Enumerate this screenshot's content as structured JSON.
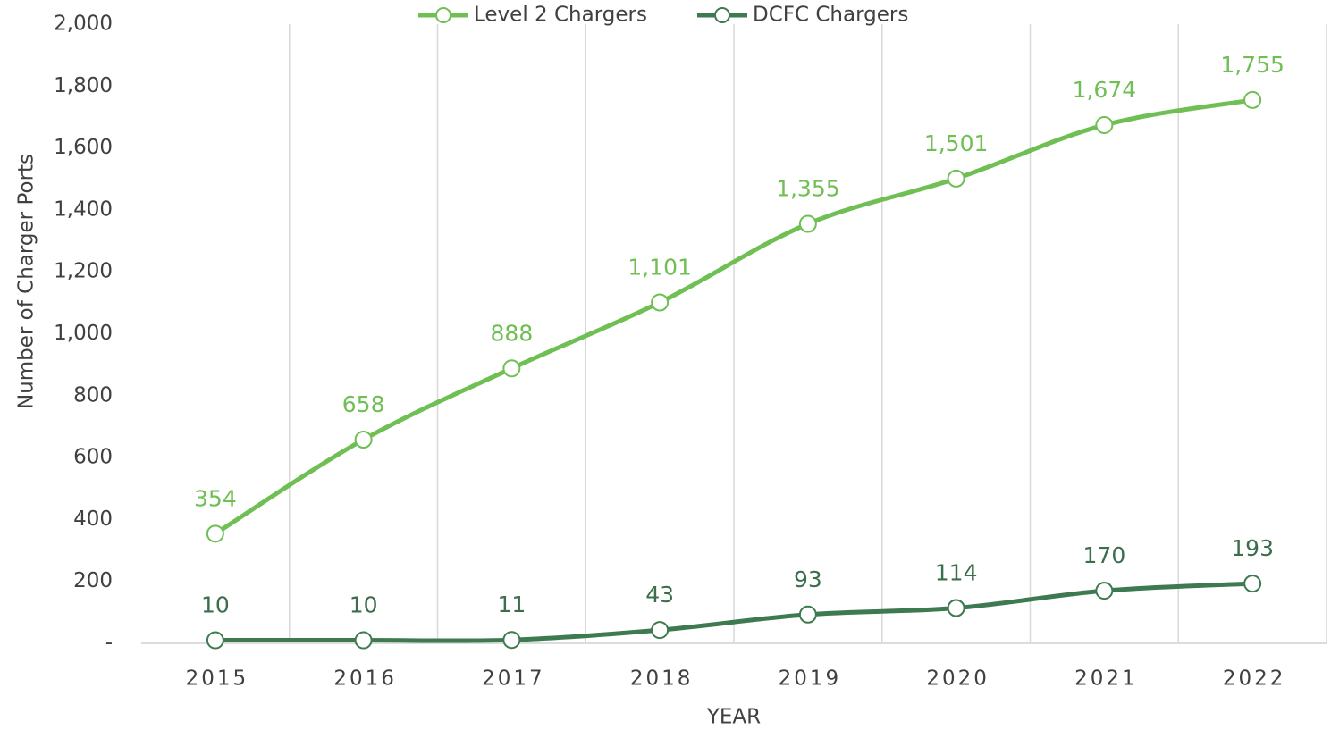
{
  "chart_data": {
    "type": "line",
    "x_label": "YEAR",
    "y_label": "Number of Charger Ports",
    "categories": [
      "2015",
      "2016",
      "2017",
      "2018",
      "2019",
      "2020",
      "2021",
      "2022"
    ],
    "series": [
      {
        "name": "Level 2 Chargers",
        "color": "#70bf54",
        "values": [
          354,
          658,
          888,
          1101,
          1355,
          1501,
          1674,
          1755
        ],
        "value_labels": [
          "354",
          "658",
          "888",
          "1,101",
          "1,355",
          "1,501",
          "1,674",
          "1,755"
        ]
      },
      {
        "name": "DCFC Chargers",
        "color": "#3d7a50",
        "label_color": "#3c6e4c",
        "values": [
          10,
          10,
          11,
          43,
          93,
          114,
          170,
          193
        ]
      }
    ],
    "ylim": [
      0,
      2000
    ],
    "yticks": [
      {
        "value": 0,
        "label": "-"
      },
      200,
      400,
      600,
      800,
      {
        "value": 1000,
        "label": "1,000"
      },
      {
        "value": 1200,
        "label": "1,200"
      },
      {
        "value": 1400,
        "label": "1,400"
      },
      {
        "value": 1600,
        "label": "1,600"
      },
      {
        "value": 1800,
        "label": "1,800"
      },
      {
        "value": 2000,
        "label": "2,000"
      }
    ],
    "grid": true,
    "smooth": true,
    "legend": "top"
  }
}
